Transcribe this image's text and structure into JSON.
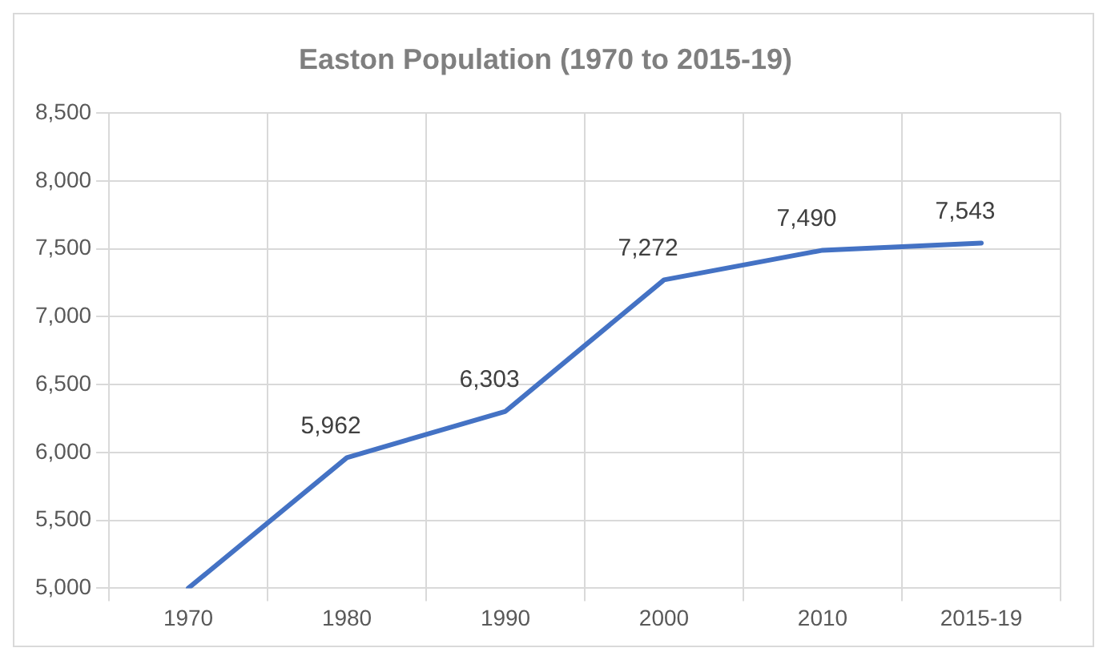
{
  "chart_data": {
    "type": "line",
    "title": "Easton Population (1970 to 2015-19)",
    "categories": [
      "1970",
      "1980",
      "1990",
      "2000",
      "2010",
      "2015-19"
    ],
    "series": [
      {
        "color": "#4472c4",
        "values": [
          5000,
          5962,
          6303,
          7272,
          7490,
          7543
        ],
        "value_labels": [
          null,
          "5,962",
          "6,303",
          "7,272",
          "7,490",
          "7,543"
        ]
      }
    ],
    "ylim": [
      5000,
      8500
    ],
    "yticks": [
      {
        "value": 5000,
        "label": "5,000"
      },
      {
        "value": 5500,
        "label": "5,500"
      },
      {
        "value": 6000,
        "label": "6,000"
      },
      {
        "value": 6500,
        "label": "6,500"
      },
      {
        "value": 7000,
        "label": "7,000"
      },
      {
        "value": 7500,
        "label": "7,500"
      },
      {
        "value": 8000,
        "label": "8,000"
      },
      {
        "value": 8500,
        "label": "8,500"
      }
    ],
    "grid": true,
    "legend": false,
    "marker": "none",
    "line_style": "solid"
  }
}
